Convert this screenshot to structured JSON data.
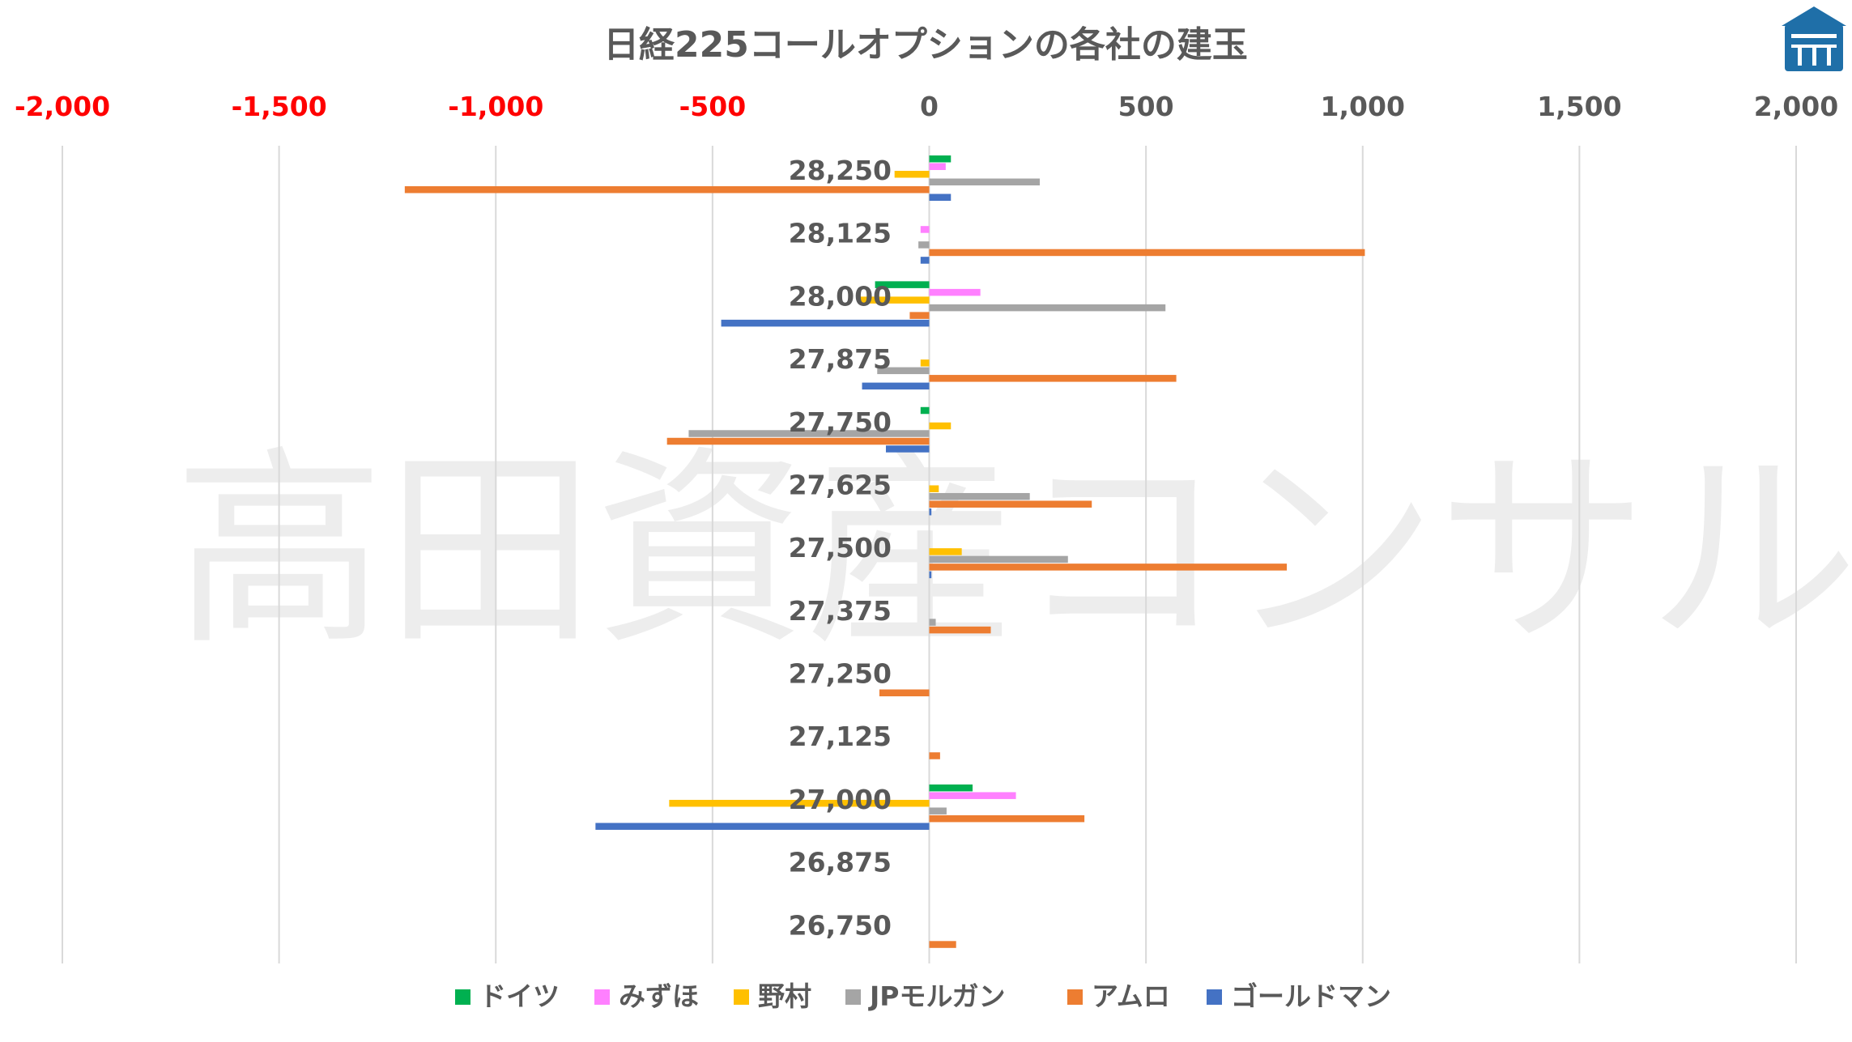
{
  "chart_data": {
    "type": "bar",
    "orientation": "horizontal",
    "title": "日経225コールオプションの各社の建玉",
    "xlim": [
      -2000,
      2000
    ],
    "xticks": [
      -2000,
      -1500,
      -1000,
      -500,
      0,
      500,
      1000,
      1500,
      2000
    ],
    "xtick_labels": [
      "-2,000",
      "-1,500",
      "-1,000",
      "-500",
      "0",
      "500",
      "1,000",
      "1,500",
      "2,000"
    ],
    "negative_tick_color": "#ff0000",
    "positive_tick_color": "#595959",
    "categories": [
      "28,250",
      "28,125",
      "28,000",
      "27,875",
      "27,750",
      "27,625",
      "27,500",
      "27,375",
      "27,250",
      "27,125",
      "27,000",
      "26,875",
      "26,750"
    ],
    "series": [
      {
        "name": "ドイツ",
        "color": "#00b050",
        "values": [
          50,
          0,
          -125,
          0,
          -20,
          0,
          0,
          0,
          0,
          0,
          100,
          0,
          0
        ]
      },
      {
        "name": "みずほ",
        "color": "#ff80ff",
        "values": [
          38,
          -20,
          118,
          0,
          0,
          0,
          0,
          0,
          0,
          0,
          200,
          0,
          0
        ]
      },
      {
        "name": "野村",
        "color": "#ffc000",
        "values": [
          -80,
          0,
          -160,
          -20,
          50,
          22,
          75,
          0,
          0,
          0,
          -600,
          0,
          0
        ]
      },
      {
        "name": "JPモルガン",
        "color": "#a5a5a5",
        "values": [
          255,
          -25,
          545,
          -120,
          -555,
          232,
          320,
          15,
          0,
          0,
          40,
          0,
          0
        ]
      },
      {
        "name": "アムロ",
        "color": "#ed7d31",
        "values": [
          -1210,
          1005,
          -45,
          570,
          -605,
          375,
          825,
          142,
          -115,
          25,
          358,
          0,
          62
        ]
      },
      {
        "name": "ゴールドマン",
        "color": "#4472c4",
        "values": [
          50,
          -20,
          -480,
          -155,
          -100,
          5,
          5,
          0,
          0,
          0,
          -770,
          0,
          0
        ]
      }
    ],
    "legend_position": "bottom",
    "gridlines": "vertical"
  },
  "watermark": "高田資産コンサル",
  "logo": "house-logo"
}
